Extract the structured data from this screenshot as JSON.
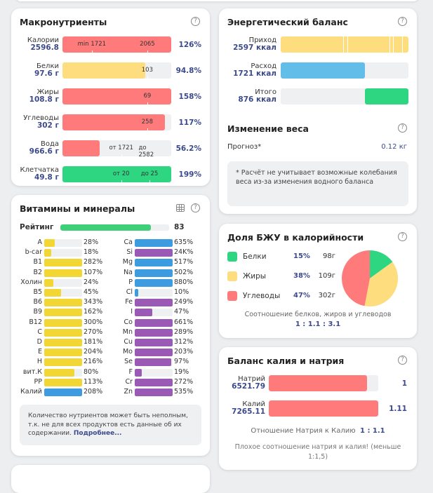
{
  "colors": {
    "red": "#ff7b7b",
    "yellow": "#fddd7e",
    "green": "#2fd682",
    "blue": "#62bde8",
    "vyellow": "#f2d634",
    "vblue": "#3d9be0",
    "vpurple": "#9b59b6",
    "accent": "#3b4a8c"
  },
  "macro": {
    "title": "Макронутриенты",
    "rows": [
      {
        "name": "Калории",
        "value": "2596.8",
        "pct": "126%",
        "fill": 1.0,
        "color": "red",
        "marks": [
          {
            "t": "min 1721",
            "p": 0.27
          },
          {
            "t": "2065",
            "p": 0.78
          }
        ]
      },
      {
        "name": "Белки",
        "value": "97.6 г",
        "pct": "94.8%",
        "fill": 0.76,
        "color": "yellow",
        "marks": [
          {
            "t": "103",
            "p": 0.78
          }
        ]
      },
      {
        "name": "Жиры",
        "value": "108.8 г",
        "pct": "158%",
        "fill": 1.0,
        "color": "red",
        "marks": [
          {
            "t": "69",
            "p": 0.78
          }
        ]
      },
      {
        "name": "Углеводы",
        "value": "302 г",
        "pct": "117%",
        "fill": 0.94,
        "color": "red",
        "marks": [
          {
            "t": "258",
            "p": 0.78
          }
        ]
      },
      {
        "name": "Вода",
        "value": "966.6 г",
        "pct": "56.2%",
        "fill": 0.34,
        "color": "red",
        "marks": [
          {
            "t": "от 1721",
            "p": 0.54
          },
          {
            "t": "до 2582",
            "p": 0.8
          }
        ]
      },
      {
        "name": "Клетчатка",
        "value": "49.8 г",
        "pct": "199%",
        "fill": 1.0,
        "color": "green",
        "marks": [
          {
            "t": "от 20",
            "p": 0.54
          },
          {
            "t": "до 25",
            "p": 0.8
          }
        ]
      }
    ]
  },
  "energy": {
    "title": "Энергетический баланс",
    "rows": [
      {
        "name": "Приход",
        "value": "2597 ккал",
        "fill": 1.0,
        "color": "yellow"
      },
      {
        "name": "Расход",
        "value": "1721 ккал",
        "fill": 0.66,
        "color": "blue"
      },
      {
        "name": "Итого",
        "value": "876 ккал",
        "fill": 0.34,
        "color": "green",
        "align": "right"
      }
    ]
  },
  "weight": {
    "title": "Изменение веса",
    "forecast_label": "Прогноз*",
    "forecast_value": "0.12 кг",
    "note": "* Расчёт не учитывает возможные колебания веса из-за изменения водного баланса"
  },
  "vitamins": {
    "title": "Витамины и минералы",
    "rating_label": "Рейтинг",
    "rating_value": "83",
    "rating_fill": 0.83,
    "left": [
      {
        "n": "A",
        "p": "28%",
        "f": 0.28,
        "c": "vyellow"
      },
      {
        "n": "b-car",
        "p": "18%",
        "f": 0.18,
        "c": "vyellow"
      },
      {
        "n": "B1",
        "p": "282%",
        "f": 1,
        "c": "vyellow"
      },
      {
        "n": "B2",
        "p": "107%",
        "f": 1,
        "c": "vyellow"
      },
      {
        "n": "Холин",
        "p": "24%",
        "f": 0.24,
        "c": "vyellow"
      },
      {
        "n": "B5",
        "p": "45%",
        "f": 0.45,
        "c": "vyellow"
      },
      {
        "n": "B6",
        "p": "343%",
        "f": 1,
        "c": "vyellow"
      },
      {
        "n": "B9",
        "p": "162%",
        "f": 1,
        "c": "vyellow"
      },
      {
        "n": "B12",
        "p": "300%",
        "f": 1,
        "c": "vyellow"
      },
      {
        "n": "C",
        "p": "270%",
        "f": 1,
        "c": "vyellow"
      },
      {
        "n": "D",
        "p": "181%",
        "f": 1,
        "c": "vyellow"
      },
      {
        "n": "E",
        "p": "204%",
        "f": 1,
        "c": "vyellow"
      },
      {
        "n": "H",
        "p": "216%",
        "f": 1,
        "c": "vyellow"
      },
      {
        "n": "вит.К",
        "p": "80%",
        "f": 0.8,
        "c": "vyellow"
      },
      {
        "n": "PP",
        "p": "113%",
        "f": 1,
        "c": "vyellow"
      },
      {
        "n": "Калий",
        "p": "208%",
        "f": 1,
        "c": "vblue"
      }
    ],
    "right": [
      {
        "n": "Ca",
        "p": "635%",
        "f": 1,
        "c": "vblue"
      },
      {
        "n": "Si",
        "p": "24K%",
        "f": 1,
        "c": "vpurple"
      },
      {
        "n": "Mg",
        "p": "517%",
        "f": 1,
        "c": "vblue"
      },
      {
        "n": "Na",
        "p": "502%",
        "f": 1,
        "c": "vblue"
      },
      {
        "n": "P",
        "p": "880%",
        "f": 1,
        "c": "vblue"
      },
      {
        "n": "Cl",
        "p": "10%",
        "f": 0.1,
        "c": "vblue"
      },
      {
        "n": "Fe",
        "p": "249%",
        "f": 1,
        "c": "vpurple"
      },
      {
        "n": "I",
        "p": "47%",
        "f": 0.47,
        "c": "vpurple"
      },
      {
        "n": "Co",
        "p": "661%",
        "f": 1,
        "c": "vpurple"
      },
      {
        "n": "Mn",
        "p": "289%",
        "f": 1,
        "c": "vpurple"
      },
      {
        "n": "Cu",
        "p": "312%",
        "f": 1,
        "c": "vpurple"
      },
      {
        "n": "Mo",
        "p": "203%",
        "f": 1,
        "c": "vpurple"
      },
      {
        "n": "Se",
        "p": "97%",
        "f": 0.97,
        "c": "vpurple"
      },
      {
        "n": "F",
        "p": "19%",
        "f": 0.19,
        "c": "vpurple"
      },
      {
        "n": "Cr",
        "p": "272%",
        "f": 1,
        "c": "vpurple"
      },
      {
        "n": "Zn",
        "p": "535%",
        "f": 1,
        "c": "vpurple"
      }
    ],
    "note": "Количество нутриентов может быть неполным, т.к. не для всех продуктов есть данные об их содержании.",
    "more_link": "Подробнее..."
  },
  "bju": {
    "title": "Доля БЖУ в калорийности",
    "items": [
      {
        "name": "Белки",
        "pct": "15%",
        "grams": "98г",
        "share": 15,
        "color": "green"
      },
      {
        "name": "Жиры",
        "pct": "38%",
        "grams": "109г",
        "share": 38,
        "color": "yellow"
      },
      {
        "name": "Углеводы",
        "pct": "47%",
        "grams": "302г",
        "share": 47,
        "color": "red"
      }
    ],
    "ratio_label": "Соотношение белков, жиров и углеводов",
    "ratio_value": "1 : 1.1 : 3.1"
  },
  "kna": {
    "title": "Баланс калия и натрия",
    "rows": [
      {
        "name": "Натрий",
        "value": "6521.79",
        "ratio": "1",
        "fill": 0.9
      },
      {
        "name": "Калий",
        "value": "7265.11",
        "ratio": "1.11",
        "fill": 1.0
      }
    ],
    "ratio_label": "Отношение Натрия к Калию",
    "ratio_value": "1 : 1.1",
    "warning": "Плохое соотношение натрия и калия! (меньше 1:1,5)"
  }
}
